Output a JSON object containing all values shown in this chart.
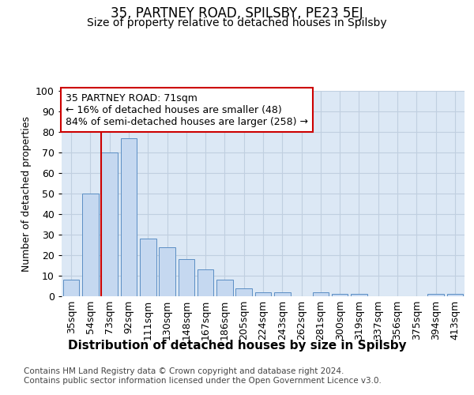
{
  "title": "35, PARTNEY ROAD, SPILSBY, PE23 5EJ",
  "subtitle": "Size of property relative to detached houses in Spilsby",
  "xlabel": "Distribution of detached houses by size in Spilsby",
  "ylabel": "Number of detached properties",
  "categories": [
    "35sqm",
    "54sqm",
    "73sqm",
    "92sqm",
    "111sqm",
    "130sqm",
    "148sqm",
    "167sqm",
    "186sqm",
    "205sqm",
    "224sqm",
    "243sqm",
    "262sqm",
    "281sqm",
    "300sqm",
    "319sqm",
    "337sqm",
    "356sqm",
    "375sqm",
    "394sqm",
    "413sqm"
  ],
  "values": [
    8,
    50,
    70,
    77,
    28,
    24,
    18,
    13,
    8,
    4,
    2,
    2,
    0,
    2,
    1,
    1,
    0,
    0,
    0,
    1,
    1
  ],
  "bar_color": "#c5d8f0",
  "bar_edge_color": "#5b8ec4",
  "highlight_index": 2,
  "highlight_line_color": "#cc0000",
  "annotation_text": "35 PARTNEY ROAD: 71sqm\n← 16% of detached houses are smaller (48)\n84% of semi-detached houses are larger (258) →",
  "annotation_box_color": "#ffffff",
  "annotation_box_edge_color": "#cc0000",
  "ylim": [
    0,
    100
  ],
  "yticks": [
    0,
    10,
    20,
    30,
    40,
    50,
    60,
    70,
    80,
    90,
    100
  ],
  "grid_color": "#c0cfe0",
  "background_color": "#dce8f5",
  "footer": "Contains HM Land Registry data © Crown copyright and database right 2024.\nContains public sector information licensed under the Open Government Licence v3.0.",
  "title_fontsize": 12,
  "subtitle_fontsize": 10,
  "xlabel_fontsize": 11,
  "ylabel_fontsize": 9,
  "annotation_fontsize": 9,
  "tick_fontsize": 9,
  "footer_fontsize": 7.5
}
